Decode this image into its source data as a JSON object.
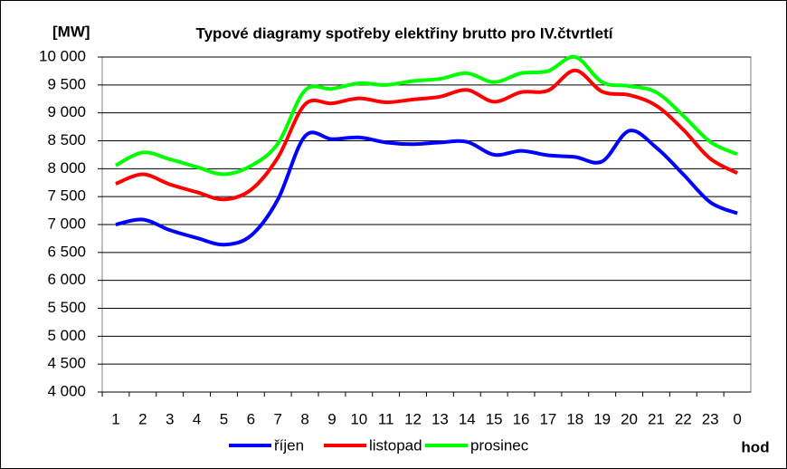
{
  "chart_data": {
    "type": "line",
    "title": "Typové diagramy spotřeby elektřiny brutto pro IV.čtvrtletí",
    "y_label": "[MW]",
    "x_label": "hod",
    "categories": [
      "1",
      "2",
      "3",
      "4",
      "5",
      "6",
      "7",
      "8",
      "9",
      "10",
      "11",
      "12",
      "13",
      "14",
      "15",
      "16",
      "17",
      "18",
      "19",
      "20",
      "21",
      "22",
      "23",
      "0"
    ],
    "series": [
      {
        "name": "říjen",
        "color": "#0000ff",
        "values": [
          7000,
          7090,
          6900,
          6760,
          6640,
          6800,
          7450,
          8580,
          8530,
          8560,
          8470,
          8440,
          8470,
          8480,
          8250,
          8320,
          8240,
          8210,
          8130,
          8680,
          8380,
          7900,
          7400,
          7200
        ]
      },
      {
        "name": "listopad",
        "color": "#ff0000",
        "values": [
          7730,
          7900,
          7720,
          7580,
          7450,
          7620,
          8200,
          9150,
          9170,
          9260,
          9190,
          9240,
          9290,
          9410,
          9200,
          9370,
          9400,
          9760,
          9380,
          9320,
          9130,
          8700,
          8180,
          7920
        ]
      },
      {
        "name": "prosinec",
        "color": "#00ff00",
        "values": [
          8060,
          8290,
          8170,
          8030,
          7900,
          8050,
          8450,
          9400,
          9430,
          9530,
          9500,
          9570,
          9610,
          9710,
          9550,
          9710,
          9750,
          10000,
          9550,
          9480,
          9370,
          8950,
          8480,
          8260
        ]
      }
    ],
    "ylim": [
      4000,
      10000
    ],
    "yticks": [
      {
        "value": 4000,
        "label": "4 000"
      },
      {
        "value": 4500,
        "label": "4 500"
      },
      {
        "value": 5000,
        "label": "5 000"
      },
      {
        "value": 5500,
        "label": "5 500"
      },
      {
        "value": 6000,
        "label": "6 000"
      },
      {
        "value": 6500,
        "label": "6 500"
      },
      {
        "value": 7000,
        "label": "7 000"
      },
      {
        "value": 7500,
        "label": "7 500"
      },
      {
        "value": 8000,
        "label": "8 000"
      },
      {
        "value": 8500,
        "label": "8 500"
      },
      {
        "value": 9000,
        "label": "9 000"
      },
      {
        "value": 9500,
        "label": "9 500"
      },
      {
        "value": 10000,
        "label": "10 000"
      }
    ],
    "grid": true
  }
}
